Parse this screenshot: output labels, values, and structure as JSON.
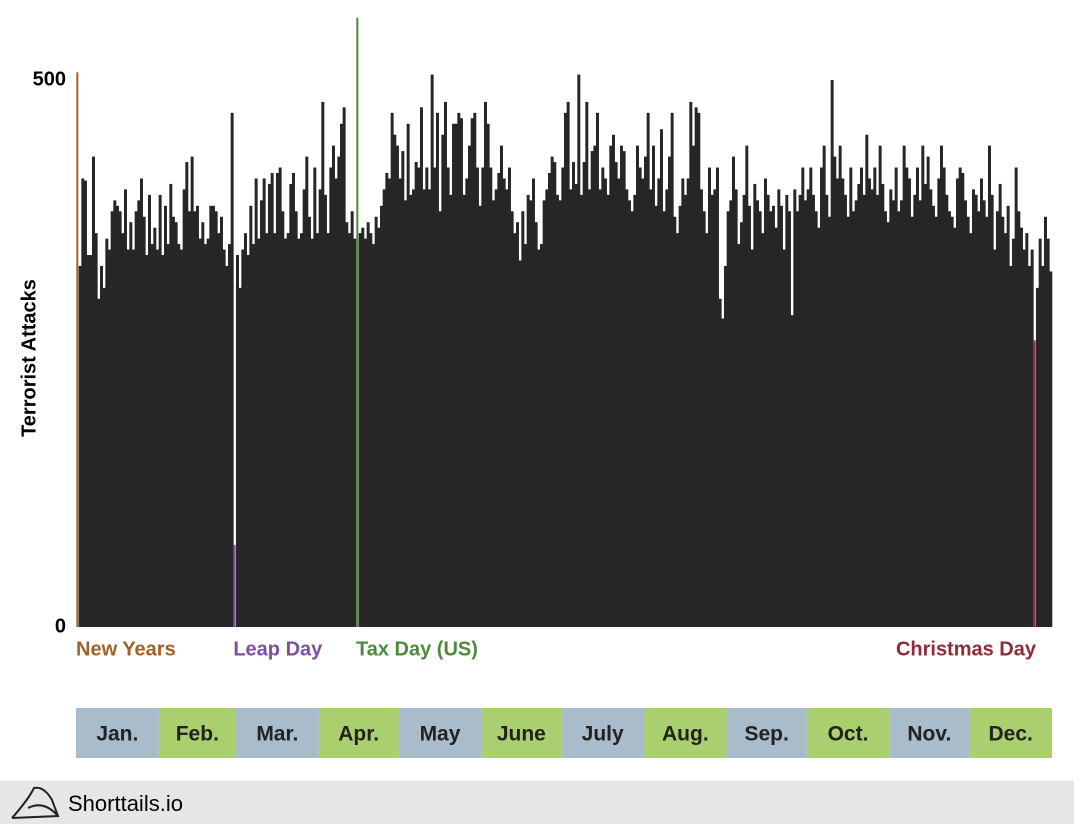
{
  "chart_data": {
    "type": "bar",
    "ylabel": "Terrorist Attacks",
    "color": "#262626",
    "ylim": [
      0,
      560
    ],
    "yticks": [
      0,
      500
    ],
    "grid": false,
    "month_colors": [
      "#a8bccc",
      "#a9cf6e"
    ],
    "months": [
      {
        "label": "Jan.",
        "values": [
          507,
          330,
          410,
          408,
          340,
          340,
          430,
          360,
          300,
          330,
          310,
          355,
          345,
          380,
          390,
          385,
          380,
          360,
          400,
          345,
          370,
          345,
          380,
          390,
          410,
          375,
          340,
          395,
          350,
          365,
          345
        ]
      },
      {
        "label": "Feb.",
        "values": [
          395,
          340,
          385,
          350,
          405,
          375,
          370,
          350,
          345,
          400,
          425,
          380,
          430,
          380,
          385,
          355,
          370,
          350,
          355,
          385,
          385,
          380,
          360,
          375,
          345,
          330,
          350,
          470,
          75
        ]
      },
      {
        "label": "Mar.",
        "values": [
          340,
          310,
          345,
          360,
          340,
          385,
          350,
          410,
          355,
          390,
          410,
          360,
          405,
          415,
          360,
          415,
          420,
          380,
          355,
          360,
          405,
          415,
          380,
          355,
          360,
          400,
          430,
          375,
          355,
          420,
          360
        ]
      },
      {
        "label": "Apr.",
        "values": [
          400,
          480,
          395,
          360,
          420,
          440,
          410,
          430,
          460,
          475,
          370,
          360,
          380,
          355,
          557,
          360,
          365,
          355,
          370,
          360,
          350,
          375,
          365,
          385,
          400,
          415,
          410,
          470,
          450,
          440
        ]
      },
      {
        "label": "May",
        "values": [
          410,
          435,
          390,
          460,
          395,
          400,
          425,
          420,
          475,
          400,
          420,
          400,
          505,
          420,
          470,
          380,
          450,
          480,
          420,
          395,
          460,
          460,
          470,
          465,
          395,
          410,
          440,
          465,
          470,
          420,
          385
        ]
      },
      {
        "label": "June",
        "values": [
          420,
          480,
          460,
          420,
          390,
          400,
          415,
          440,
          410,
          400,
          420,
          380,
          360,
          370,
          335,
          380,
          350,
          395,
          390,
          410,
          370,
          345,
          350,
          390,
          400,
          415,
          430,
          425,
          395,
          390
        ]
      },
      {
        "label": "July",
        "values": [
          420,
          470,
          480,
          400,
          425,
          405,
          505,
          395,
          425,
          480,
          400,
          435,
          440,
          470,
          400,
          420,
          410,
          395,
          440,
          450,
          425,
          410,
          440,
          435,
          400,
          390,
          380,
          395,
          440,
          420,
          410
        ]
      },
      {
        "label": "Aug.",
        "values": [
          430,
          470,
          400,
          440,
          385,
          410,
          455,
          380,
          400,
          430,
          470,
          375,
          360,
          385,
          410,
          395,
          410,
          480,
          440,
          475,
          470,
          400,
          380,
          360,
          420,
          395,
          400,
          420,
          300,
          282,
          330
        ]
      },
      {
        "label": "Sep.",
        "values": [
          380,
          390,
          430,
          400,
          350,
          370,
          395,
          440,
          385,
          345,
          405,
          390,
          380,
          360,
          410,
          395,
          380,
          385,
          365,
          400,
          385,
          345,
          395,
          380,
          285,
          400,
          380,
          395,
          420,
          390
        ]
      },
      {
        "label": "Oct.",
        "values": [
          400,
          420,
          395,
          380,
          365,
          420,
          440,
          395,
          375,
          500,
          430,
          410,
          440,
          410,
          395,
          375,
          420,
          380,
          390,
          405,
          420,
          395,
          450,
          410,
          400,
          420,
          395,
          440,
          405,
          380,
          370
        ]
      },
      {
        "label": "Nov.",
        "values": [
          400,
          390,
          420,
          380,
          390,
          440,
          420,
          410,
          375,
          395,
          420,
          390,
          440,
          405,
          430,
          400,
          385,
          375,
          410,
          440,
          420,
          395,
          380,
          375,
          365,
          410,
          420,
          415,
          390,
          375
        ]
      },
      {
        "label": "Dec.",
        "values": [
          360,
          400,
          395,
          380,
          410,
          390,
          375,
          440,
          395,
          345,
          380,
          405,
          375,
          360,
          385,
          330,
          355,
          420,
          380,
          365,
          345,
          360,
          330,
          345,
          262,
          310,
          355,
          330,
          375,
          355,
          325
        ]
      }
    ],
    "annotations": [
      {
        "label": "New Years",
        "day": 1,
        "color": "#a0622a"
      },
      {
        "label": "Leap Day",
        "day": 60,
        "color": "#7d4f9e"
      },
      {
        "label": "Tax Day (US)",
        "day": 106,
        "color": "#4e8a3e"
      },
      {
        "label": "Christmas Day",
        "day": 360,
        "color": "#8c2d3a"
      }
    ]
  },
  "footer": "Shorttails.io"
}
